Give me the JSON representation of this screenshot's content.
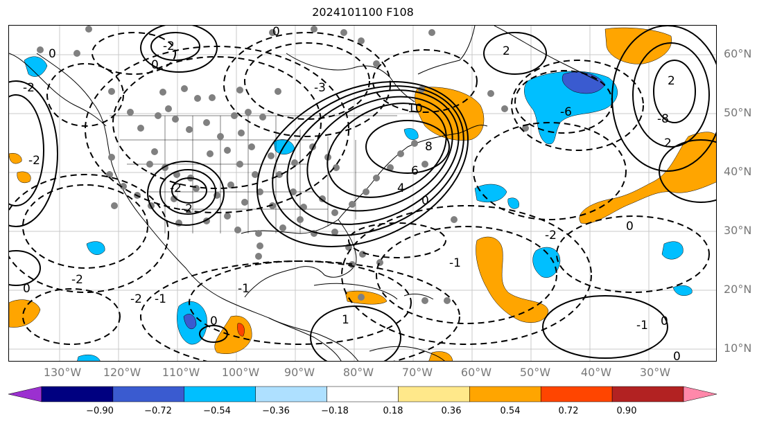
{
  "title": "2024101100 F108",
  "lat_labels": [
    "60°N",
    "50°N",
    "40°N",
    "30°N",
    "20°N",
    "10°N"
  ],
  "lon_labels": [
    "130°W",
    "120°W",
    "110°W",
    "100°W",
    "90°W",
    "80°W",
    "70°W",
    "60°W",
    "50°W",
    "40°W",
    "30°W"
  ],
  "contour_labels": [
    "0",
    "-2",
    "2",
    "0",
    "0",
    "-3",
    "10",
    "8",
    "6",
    "4",
    "-2",
    "-2",
    "2",
    "-8",
    "-6",
    "0",
    "-2",
    "-1",
    "0",
    "-1",
    "0",
    "1",
    "-2",
    "-2",
    "-1",
    "0",
    "2",
    "-1",
    "0",
    "-2",
    "0",
    "-2"
  ],
  "colorbar": {
    "ticks": [
      "−0.90",
      "−0.72",
      "−0.54",
      "−0.36",
      "−0.18",
      "0.18",
      "0.36",
      "0.54",
      "0.72",
      "0.90"
    ],
    "colors": [
      "#9b30d0",
      "#000080",
      "#3a5bd0",
      "#00bfff",
      "#aee0ff",
      "#ffffff",
      "#ffe88a",
      "#ffa500",
      "#ff4500",
      "#b22222",
      "#ff88aa"
    ]
  },
  "shading_colors": {
    "orange": "#ffa500",
    "lightblue": "#00bfff",
    "blue": "#3a5bd0",
    "red": "#ff4500"
  },
  "contour_color": "#000000",
  "station_color": "#808080"
}
